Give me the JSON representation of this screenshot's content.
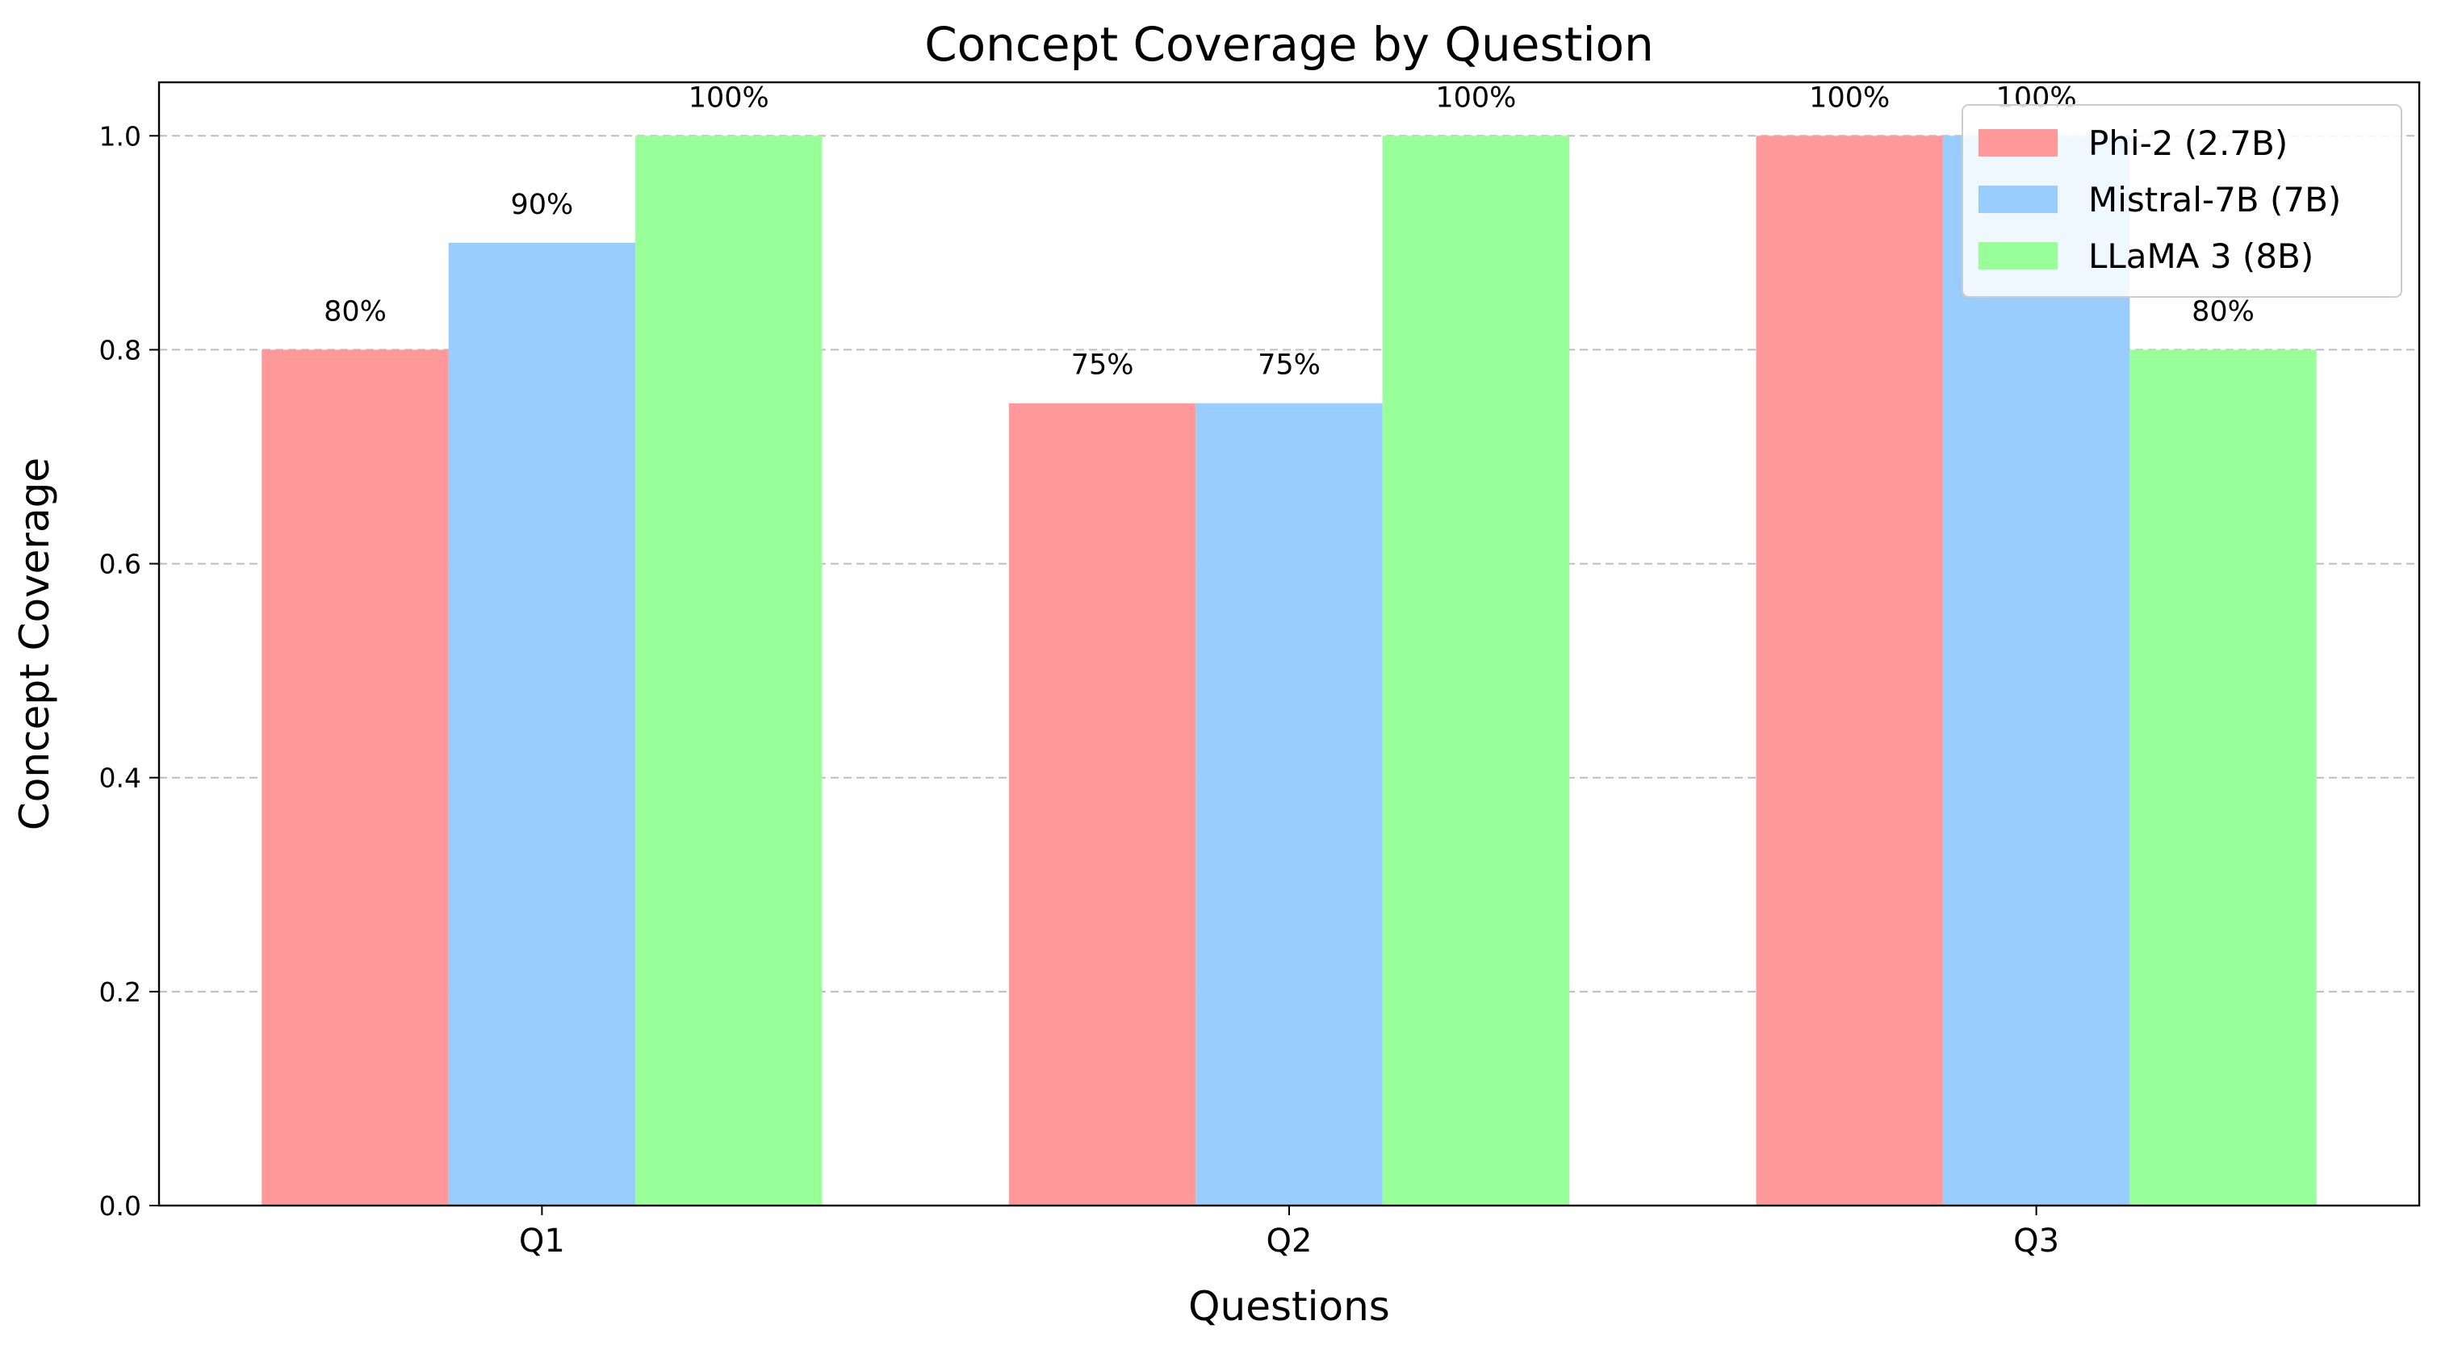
{
  "chart_data": {
    "type": "bar",
    "title": "Concept Coverage by Question",
    "xlabel": "Questions",
    "ylabel": "Concept Coverage",
    "categories": [
      "Q1",
      "Q2",
      "Q3"
    ],
    "ylim": [
      0,
      1.05
    ],
    "yticks": [
      0.0,
      0.2,
      0.4,
      0.6,
      0.8,
      1.0
    ],
    "ytick_labels": [
      "0.0",
      "0.2",
      "0.4",
      "0.6",
      "0.8",
      "1.0"
    ],
    "grid": "y-dashed",
    "legend_position": "top-right",
    "series": [
      {
        "name": "Phi-2 (2.7B)",
        "color": "#ff9999",
        "values": [
          0.8,
          0.75,
          1.0
        ],
        "labels": [
          "80%",
          "75%",
          "100%"
        ]
      },
      {
        "name": "Mistral-7B (7B)",
        "color": "#99ccff",
        "values": [
          0.9,
          0.75,
          1.0
        ],
        "labels": [
          "90%",
          "75%",
          "100%"
        ]
      },
      {
        "name": "LLaMA 3 (8B)",
        "color": "#99ff99",
        "values": [
          1.0,
          1.0,
          0.8
        ],
        "labels": [
          "100%",
          "100%",
          "80%"
        ]
      }
    ]
  }
}
